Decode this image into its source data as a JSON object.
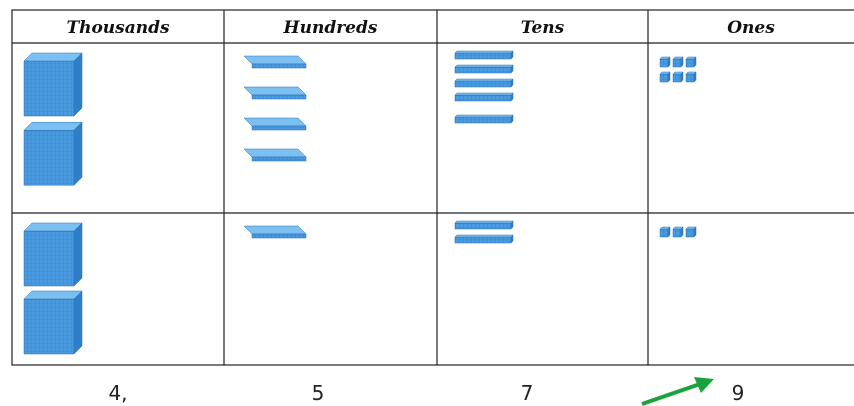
{
  "table": {
    "headers": [
      "Thousands",
      "Hundreds",
      "Tens",
      "Ones"
    ],
    "rows": [
      {
        "counts": [
          2,
          4,
          5,
          6
        ]
      },
      {
        "counts": [
          2,
          1,
          2,
          3
        ]
      }
    ],
    "totals": [
      "4,",
      "5",
      "7",
      "9"
    ]
  }
}
